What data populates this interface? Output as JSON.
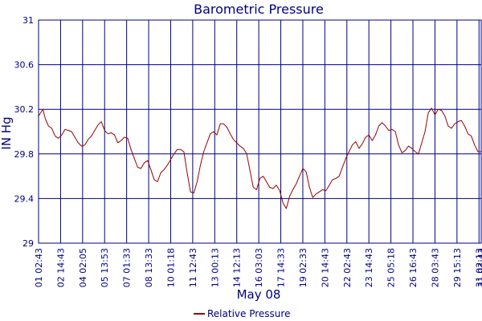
{
  "chart_data": {
    "type": "line",
    "title": "Barometric Pressure",
    "ylabel": "IN Hg",
    "xlabel": "May 08",
    "ylim": [
      29,
      31
    ],
    "yticks": [
      "31",
      "30.6",
      "30.2",
      "29.8",
      "29.4",
      "29"
    ],
    "ytick_values": [
      31,
      30.6,
      30.2,
      29.8,
      29.4,
      29
    ],
    "xticks": [
      "01 02:43",
      "02 14:43",
      "04 02:05",
      "05 13:53",
      "07 01:33",
      "08 13:33",
      "10 01:18",
      "11 12:43",
      "13 00:13",
      "14 12:13",
      "16 03:03",
      "17 14:33",
      "19 02:33",
      "20 14:43",
      "22 02:43",
      "23 14:43",
      "25 05:18",
      "26 16:43",
      "28 03:43",
      "29 15:13",
      "31 02:13",
      "31 03:43"
    ],
    "xtick_positions": [
      0,
      1,
      2,
      3,
      4,
      5,
      6,
      7,
      8,
      9,
      10,
      11,
      12,
      13,
      14,
      15,
      16,
      17,
      18,
      19,
      20,
      20.1
    ],
    "xlim": [
      0,
      20.1
    ],
    "grid": true,
    "legend_position": "bottom-center",
    "series": [
      {
        "name": "Relative Pressure",
        "color": "#990000",
        "x": [
          0,
          0.1,
          0.2,
          0.3,
          0.45,
          0.6,
          0.75,
          0.9,
          1.05,
          1.2,
          1.35,
          1.5,
          1.65,
          1.8,
          1.95,
          2.1,
          2.25,
          2.4,
          2.55,
          2.7,
          2.85,
          3.0,
          3.15,
          3.3,
          3.45,
          3.6,
          3.75,
          3.9,
          4.05,
          4.2,
          4.35,
          4.5,
          4.65,
          4.8,
          4.95,
          5.1,
          5.25,
          5.4,
          5.55,
          5.7,
          5.85,
          6.0,
          6.15,
          6.3,
          6.45,
          6.6,
          6.75,
          6.9,
          7.05,
          7.2,
          7.35,
          7.5,
          7.65,
          7.8,
          7.95,
          8.1,
          8.25,
          8.4,
          8.55,
          8.7,
          8.85,
          9.0,
          9.15,
          9.3,
          9.45,
          9.6,
          9.75,
          9.9,
          10.05,
          10.2,
          10.35,
          10.5,
          10.65,
          10.8,
          10.95,
          11.1,
          11.25,
          11.4,
          11.55,
          11.7,
          11.85,
          12.0,
          12.15,
          12.3,
          12.45,
          12.6,
          12.75,
          12.9,
          13.05,
          13.2,
          13.35,
          13.5,
          13.65,
          13.8,
          13.95,
          14.1,
          14.25,
          14.4,
          14.55,
          14.7,
          14.85,
          15.0,
          15.15,
          15.3,
          15.45,
          15.6,
          15.75,
          15.9,
          16.05,
          16.2,
          16.35,
          16.5,
          16.65,
          16.8,
          16.95,
          17.1,
          17.25,
          17.4,
          17.55,
          17.7,
          17.85,
          18.0,
          18.15,
          18.3,
          18.45,
          18.6,
          18.75,
          18.9,
          19.05,
          19.2,
          19.35,
          19.5,
          19.65,
          19.8,
          19.95,
          20.1
        ],
        "values": [
          30.14,
          30.17,
          30.2,
          30.12,
          30.05,
          30.03,
          29.96,
          29.94,
          29.97,
          30.02,
          30.01,
          30.0,
          29.95,
          29.9,
          29.87,
          29.88,
          29.93,
          29.96,
          30.01,
          30.06,
          30.09,
          30.01,
          29.98,
          29.99,
          29.97,
          29.9,
          29.92,
          29.95,
          29.94,
          29.84,
          29.76,
          29.68,
          29.67,
          29.72,
          29.74,
          29.66,
          29.57,
          29.55,
          29.63,
          29.66,
          29.7,
          29.75,
          29.8,
          29.84,
          29.84,
          29.82,
          29.63,
          29.46,
          29.45,
          29.55,
          29.7,
          29.82,
          29.9,
          29.98,
          30.0,
          29.97,
          30.07,
          30.07,
          30.04,
          29.98,
          29.93,
          29.9,
          29.87,
          29.85,
          29.8,
          29.65,
          29.5,
          29.48,
          29.58,
          29.6,
          29.55,
          29.5,
          29.49,
          29.52,
          29.47,
          29.36,
          29.31,
          29.42,
          29.48,
          29.53,
          29.6,
          29.67,
          29.64,
          29.5,
          29.41,
          29.44,
          29.46,
          29.48,
          29.47,
          29.52,
          29.57,
          29.58,
          29.6,
          29.68,
          29.76,
          29.82,
          29.88,
          29.91,
          29.85,
          29.89,
          29.95,
          29.97,
          29.92,
          29.97,
          30.05,
          30.08,
          30.05,
          30.01,
          30.02,
          30.0,
          29.88,
          29.81,
          29.83,
          29.87,
          29.85,
          29.82,
          29.8,
          29.9,
          30.0,
          30.17,
          30.21,
          30.15,
          30.2,
          30.19,
          30.14,
          30.05,
          30.03,
          30.07,
          30.09,
          30.1,
          30.05,
          29.98,
          29.96,
          29.88,
          29.82,
          29.82
        ]
      }
    ]
  }
}
